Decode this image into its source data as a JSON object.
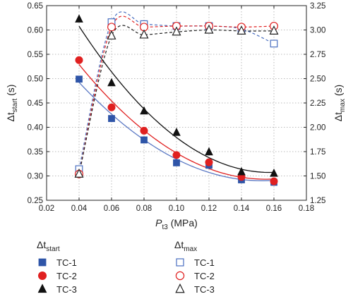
{
  "chart_data": {
    "type": "scatter",
    "x": [
      0.04,
      0.06,
      0.08,
      0.1,
      0.12,
      0.14,
      0.16
    ],
    "xlim": [
      0.02,
      0.18
    ],
    "xticks": [
      "0.02",
      "0.04",
      "0.06",
      "0.08",
      "0.10",
      "0.12",
      "0.14",
      "0.16",
      "0.18"
    ],
    "xlabel": {
      "main": "P",
      "sub": "t3",
      "unit": " (MPa)"
    },
    "y_left": {
      "lim": [
        0.25,
        0.65
      ],
      "ticks": [
        "0.25",
        "0.30",
        "0.35",
        "0.40",
        "0.45",
        "0.50",
        "0.55",
        "0.60",
        "0.65"
      ],
      "label": {
        "main": "Δt",
        "sub": "start",
        "unit": " (s)"
      }
    },
    "y_right": {
      "lim": [
        1.25,
        3.25
      ],
      "ticks": [
        "1.25",
        "1.50",
        "1.75",
        "2.00",
        "2.25",
        "2.50",
        "2.75",
        "3.00",
        "3.25"
      ],
      "label": {
        "main": "Δt",
        "sub": "max",
        "unit": " (s)"
      }
    },
    "grid": "dotted",
    "series": [
      {
        "group": "start",
        "name": "TC-1",
        "axis": "left",
        "marker": "square",
        "filled": true,
        "color": "#2f55a8",
        "fit_color": "#5b79c4",
        "values": [
          0.499,
          0.418,
          0.374,
          0.327,
          0.322,
          0.292,
          0.287
        ]
      },
      {
        "group": "start",
        "name": "TC-2",
        "axis": "left",
        "marker": "circle",
        "filled": true,
        "color": "#e02020",
        "fit_color": "#e02020",
        "values": [
          0.538,
          0.441,
          0.393,
          0.343,
          0.328,
          0.298,
          0.289
        ]
      },
      {
        "group": "start",
        "name": "TC-3",
        "axis": "left",
        "marker": "triangle",
        "filled": true,
        "color": "#111111",
        "fit_color": "#111111",
        "values": [
          0.622,
          0.491,
          0.433,
          0.389,
          0.349,
          0.308,
          0.305
        ]
      },
      {
        "group": "max",
        "name": "TC-1",
        "axis": "right",
        "marker": "square",
        "filled": false,
        "color": "#4a6fc0",
        "fit_color": "#4a6fc0",
        "values": [
          1.57,
          3.08,
          3.06,
          3.04,
          3.04,
          3.01,
          2.86
        ]
      },
      {
        "group": "max",
        "name": "TC-2",
        "axis": "right",
        "marker": "circle",
        "filled": false,
        "color": "#e02020",
        "fit_color": "#e02020",
        "values": [
          1.52,
          3.03,
          3.03,
          3.04,
          3.04,
          3.03,
          3.04
        ]
      },
      {
        "group": "max",
        "name": "TC-3",
        "axis": "right",
        "marker": "triangle",
        "filled": false,
        "color": "#222222",
        "fit_color": "#222222",
        "values": [
          1.52,
          2.94,
          2.95,
          2.98,
          3.0,
          2.99,
          2.99
        ]
      }
    ],
    "legend": {
      "placement": "bottom",
      "groups": [
        {
          "title": {
            "main": "Δt",
            "sub": "start"
          },
          "entries": [
            "TC-1",
            "TC-2",
            "TC-3"
          ]
        },
        {
          "title": {
            "main": "Δt",
            "sub": "max"
          },
          "entries": [
            "TC-1",
            "TC-2",
            "TC-3"
          ]
        }
      ]
    }
  }
}
